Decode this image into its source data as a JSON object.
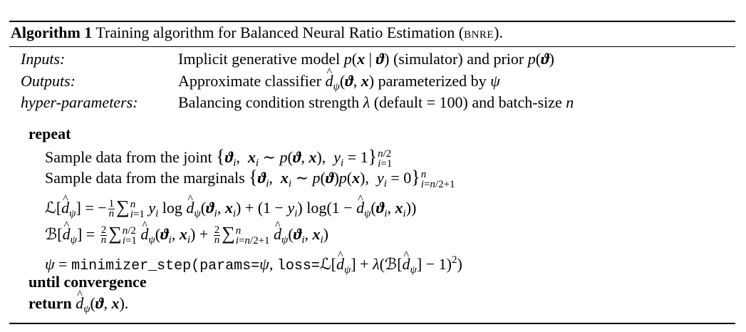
{
  "caption": {
    "label": "Algorithm 1",
    "text": "Training algorithm for Balanced Neural Ratio Estimation (",
    "abbrev": "bnre",
    "end": ")."
  },
  "header": {
    "inputs_label": "Inputs:",
    "inputs_text_a": "Implicit generative model ",
    "inputs_text_b": " (simulator) and prior ",
    "outputs_label": "Outputs:",
    "outputs_text_a": "Approximate classifier ",
    "outputs_text_b": " parameterized by ",
    "hyper_label": "hyper-parameters:",
    "hyper_text_a": "Balancing condition strength ",
    "hyper_text_b": " (default = 100) and batch-size "
  },
  "body": {
    "repeat": "repeat",
    "sample_joint": "Sample data from the joint ",
    "sample_marginals": "Sample data from the marginals ",
    "minimizer_call": "minimizer_step(params=",
    "loss_kw": "loss=",
    "until": "until convergence",
    "return": "return"
  }
}
